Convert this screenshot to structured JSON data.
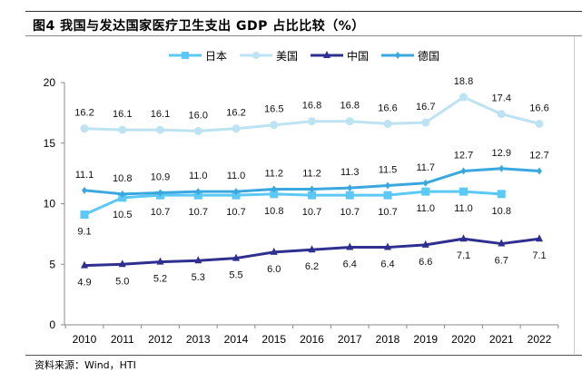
{
  "figure": {
    "title": "图4  我国与发达国家医疗卫生支出 GDP 占比比较（%）",
    "source": "资料来源：Wind，HTI"
  },
  "chart_data": {
    "type": "line",
    "title": "我国与发达国家医疗卫生支出 GDP 占比比较（%）",
    "xlabel": "",
    "ylabel": "",
    "x": [
      "2010",
      "2011",
      "2012",
      "2013",
      "2014",
      "2015",
      "2016",
      "2017",
      "2018",
      "2019",
      "2020",
      "2021",
      "2022"
    ],
    "ylim": [
      0,
      20
    ],
    "yticks": [
      0,
      5,
      10,
      15,
      20
    ],
    "grid": false,
    "legend_position": "top",
    "series": [
      {
        "name": "日本",
        "color": "#5bc8f5",
        "marker": "square",
        "label_pos": "below",
        "values": [
          9.1,
          10.5,
          10.7,
          10.7,
          10.7,
          10.8,
          10.7,
          10.7,
          10.7,
          11.0,
          11.0,
          10.8,
          null
        ]
      },
      {
        "name": "美国",
        "color": "#bde3f3",
        "marker": "circle",
        "label_pos": "above",
        "values": [
          16.2,
          16.1,
          16.1,
          16.0,
          16.2,
          16.5,
          16.8,
          16.8,
          16.6,
          16.7,
          18.8,
          17.4,
          16.6
        ]
      },
      {
        "name": "中国",
        "color": "#2e2f8f",
        "marker": "triangle",
        "label_pos": "below",
        "values": [
          4.9,
          5.0,
          5.2,
          5.3,
          5.5,
          6.0,
          6.2,
          6.4,
          6.4,
          6.6,
          7.1,
          6.7,
          7.1
        ]
      },
      {
        "name": "德国",
        "color": "#3aa8de",
        "marker": "diamond",
        "label_pos": "above",
        "values": [
          11.1,
          10.8,
          10.9,
          11.0,
          11.0,
          11.2,
          11.2,
          11.3,
          11.5,
          11.7,
          12.7,
          12.9,
          12.7
        ]
      }
    ]
  }
}
